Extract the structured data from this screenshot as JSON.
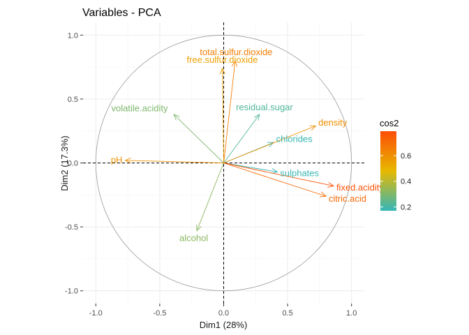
{
  "chart_data": {
    "type": "scatter",
    "title": "Variables - PCA",
    "xlabel": "Dim1 (28%)",
    "ylabel": "Dim2 (17.3%)",
    "xlim": [
      -1.1,
      1.1
    ],
    "ylim": [
      -1.1,
      1.1
    ],
    "x_ticks": [
      -1.0,
      -0.5,
      0.0,
      0.5,
      1.0
    ],
    "x_tick_labels": [
      "-1.0",
      "-0.5",
      "0.0",
      "0.5",
      "1.0"
    ],
    "y_ticks": [
      -1.0,
      -0.5,
      0.0,
      0.5,
      1.0
    ],
    "y_tick_labels": [
      "-1.0",
      "-0.5",
      "0.0",
      "0.5",
      "1.0"
    ],
    "grid": true,
    "unit_circle": true,
    "reference_lines": [
      0,
      0
    ],
    "variables": [
      {
        "name": "total.sulfur.dioxide",
        "x": 0.09,
        "y": 0.8,
        "cos2": 0.65
      },
      {
        "name": "free.sulfur.dioxide",
        "x": -0.01,
        "y": 0.74,
        "cos2": 0.55
      },
      {
        "name": "residual.sugar",
        "x": 0.28,
        "y": 0.38,
        "cos2": 0.22
      },
      {
        "name": "volatile.acidity",
        "x": -0.39,
        "y": 0.38,
        "cos2": 0.3
      },
      {
        "name": "chlorides",
        "x": 0.39,
        "y": 0.16,
        "cos2": 0.18
      },
      {
        "name": "density",
        "x": 0.72,
        "y": 0.29,
        "cos2": 0.6
      },
      {
        "name": "pH",
        "x": -0.77,
        "y": 0.02,
        "cos2": 0.59
      },
      {
        "name": "sulphates",
        "x": 0.42,
        "y": -0.07,
        "cos2": 0.18
      },
      {
        "name": "fixed.acidity",
        "x": 0.86,
        "y": -0.18,
        "cos2": 0.77
      },
      {
        "name": "citric.acid",
        "x": 0.8,
        "y": -0.26,
        "cos2": 0.71
      },
      {
        "name": "alcohol",
        "x": -0.21,
        "y": -0.53,
        "cos2": 0.32
      }
    ],
    "legend": {
      "title": "cos2",
      "position": "right",
      "range": [
        0.17,
        0.79
      ],
      "ticks": [
        0.2,
        0.4,
        0.6
      ],
      "tick_labels": [
        "0.2",
        "0.4",
        "0.6"
      ],
      "colors": [
        "#33B7B9",
        "#E7B800",
        "#FC4E07"
      ]
    }
  }
}
